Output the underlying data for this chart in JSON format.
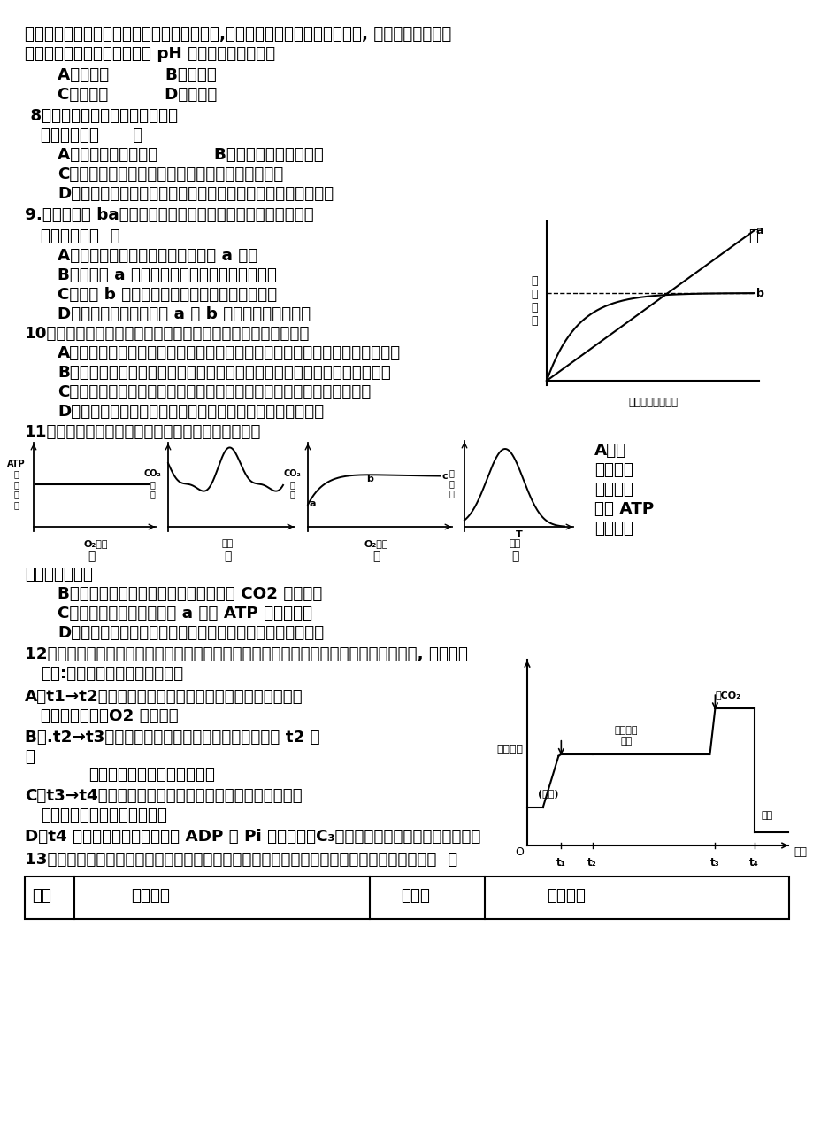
{
  "bg_color": "#ffffff",
  "figsize": [
    9.2,
    12.74
  ],
  "dpi": 100
}
